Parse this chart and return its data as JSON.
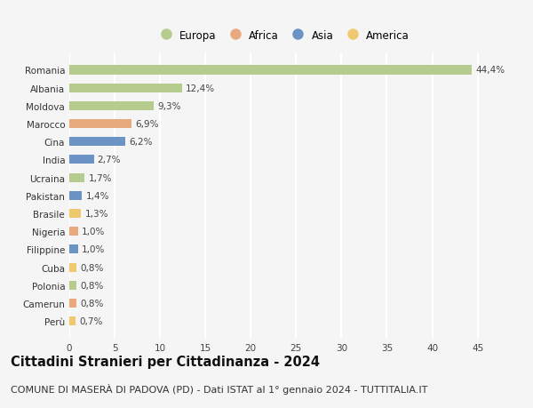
{
  "countries": [
    "Romania",
    "Albania",
    "Moldova",
    "Marocco",
    "Cina",
    "India",
    "Ucraina",
    "Pakistan",
    "Brasile",
    "Nigeria",
    "Filippine",
    "Cuba",
    "Polonia",
    "Camerun",
    "Perù"
  ],
  "values": [
    44.4,
    12.4,
    9.3,
    6.9,
    6.2,
    2.7,
    1.7,
    1.4,
    1.3,
    1.0,
    1.0,
    0.8,
    0.8,
    0.8,
    0.7
  ],
  "labels": [
    "44,4%",
    "12,4%",
    "9,3%",
    "6,9%",
    "6,2%",
    "2,7%",
    "1,7%",
    "1,4%",
    "1,3%",
    "1,0%",
    "1,0%",
    "0,8%",
    "0,8%",
    "0,8%",
    "0,7%"
  ],
  "continents": [
    "Europa",
    "Europa",
    "Europa",
    "Africa",
    "Asia",
    "Asia",
    "Europa",
    "Asia",
    "America",
    "Africa",
    "Asia",
    "America",
    "Europa",
    "Africa",
    "America"
  ],
  "continent_colors": {
    "Europa": "#b5cc8e",
    "Africa": "#e8a97e",
    "Asia": "#6b93c4",
    "America": "#f0c96e"
  },
  "legend_order": [
    "Europa",
    "Africa",
    "Asia",
    "America"
  ],
  "title": "Cittadini Stranieri per Cittadinanza - 2024",
  "subtitle": "COMUNE DI MASERÀ DI PADOVA (PD) - Dati ISTAT al 1° gennaio 2024 - TUTTITALIA.IT",
  "xlim": [
    0,
    47
  ],
  "xticks": [
    0,
    5,
    10,
    15,
    20,
    25,
    30,
    35,
    40,
    45
  ],
  "background_color": "#f5f5f5",
  "grid_color": "#ffffff",
  "title_fontsize": 10.5,
  "subtitle_fontsize": 8,
  "label_fontsize": 7.5,
  "tick_fontsize": 7.5,
  "legend_fontsize": 8.5
}
